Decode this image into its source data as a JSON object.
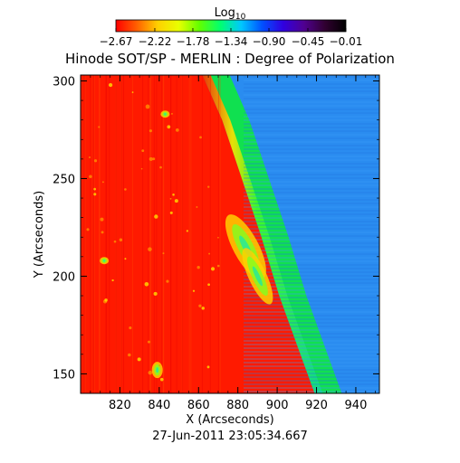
{
  "chart_data": {
    "type": "heatmap",
    "title": "Hinode SOT/SP - MERLIN : Degree of Polarization",
    "xlabel": "X (Arcseconds)",
    "ylabel": "Y (Arcseconds)",
    "timestamp": "27-Jun-2011 23:05:34.667",
    "xlim": [
      800,
      952
    ],
    "ylim": [
      140,
      303
    ],
    "x_ticks": [
      820,
      840,
      860,
      880,
      900,
      920,
      940
    ],
    "y_ticks": [
      150,
      200,
      250,
      300
    ],
    "colorbar": {
      "label_base": "Log",
      "label_sub": "10",
      "tick_labels": [
        "-2.67",
        "-2.22",
        "-1.78",
        "-1.34",
        "-0.90",
        "-0.45",
        "-0.01"
      ],
      "range": [
        -2.67,
        -0.01
      ],
      "colors": [
        "#ff0000",
        "#ff6000",
        "#ffd000",
        "#e8ff00",
        "#60ff00",
        "#00ff70",
        "#00c8ff",
        "#0050ff",
        "#3000e0",
        "#500090",
        "#300030",
        "#000000"
      ]
    },
    "limb_curve": [
      [
        862,
        303
      ],
      [
        872,
        280
      ],
      [
        882,
        250
      ],
      [
        892,
        220
      ],
      [
        901,
        190
      ],
      [
        910,
        165
      ],
      [
        919,
        140
      ]
    ],
    "regions": [
      {
        "name": "disk",
        "value": -2.6,
        "color": "#ff1a00"
      },
      {
        "name": "limb-band",
        "value": -1.25,
        "color": "#10e050"
      },
      {
        "name": "off-limb",
        "value": -0.9,
        "color": "#2a8cf0"
      }
    ],
    "features": [
      {
        "name": "plage-filament",
        "x": 884,
        "y": 215,
        "value": -1.5
      },
      {
        "name": "plage-filament-2",
        "x": 890,
        "y": 200,
        "value": -1.6
      },
      {
        "name": "patch-lower-left",
        "x": 839,
        "y": 152,
        "value": -1.7
      },
      {
        "name": "patch-left",
        "x": 812,
        "y": 208,
        "value": -1.8
      },
      {
        "name": "patch-upper",
        "x": 843,
        "y": 283,
        "value": -2.1
      }
    ]
  }
}
